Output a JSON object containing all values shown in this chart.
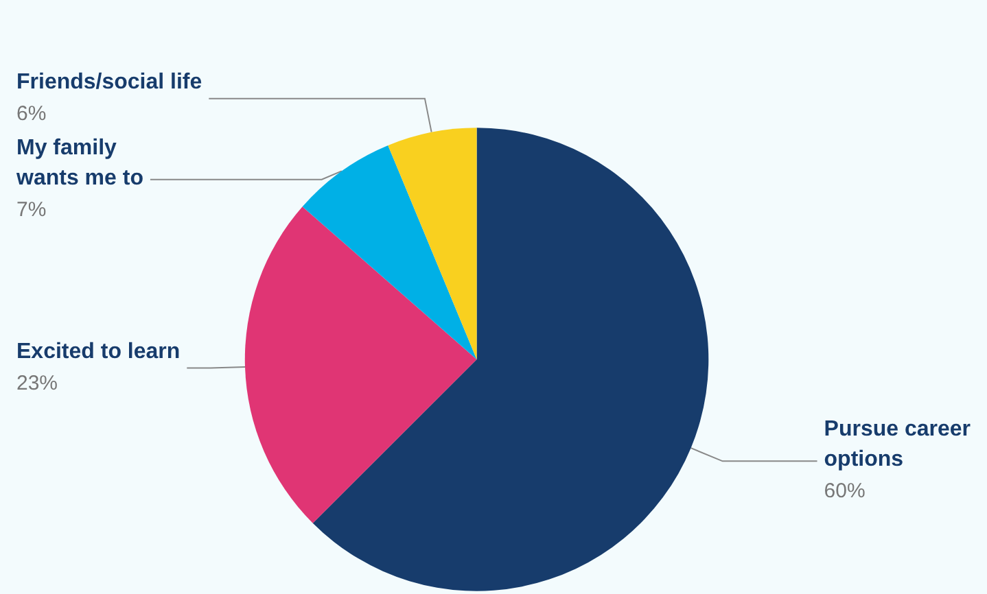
{
  "chart_data": {
    "type": "pie",
    "categories": [
      "Pursue career options",
      "Excited to learn",
      "My family wants me to",
      "Friends/social life"
    ],
    "values": [
      60,
      23,
      7,
      6
    ],
    "value_labels": [
      "60%",
      "23%",
      "7%",
      "6%"
    ],
    "colors": [
      "#173c6c",
      "#e03574",
      "#00b0e6",
      "#f9d01f"
    ],
    "legend": false
  }
}
